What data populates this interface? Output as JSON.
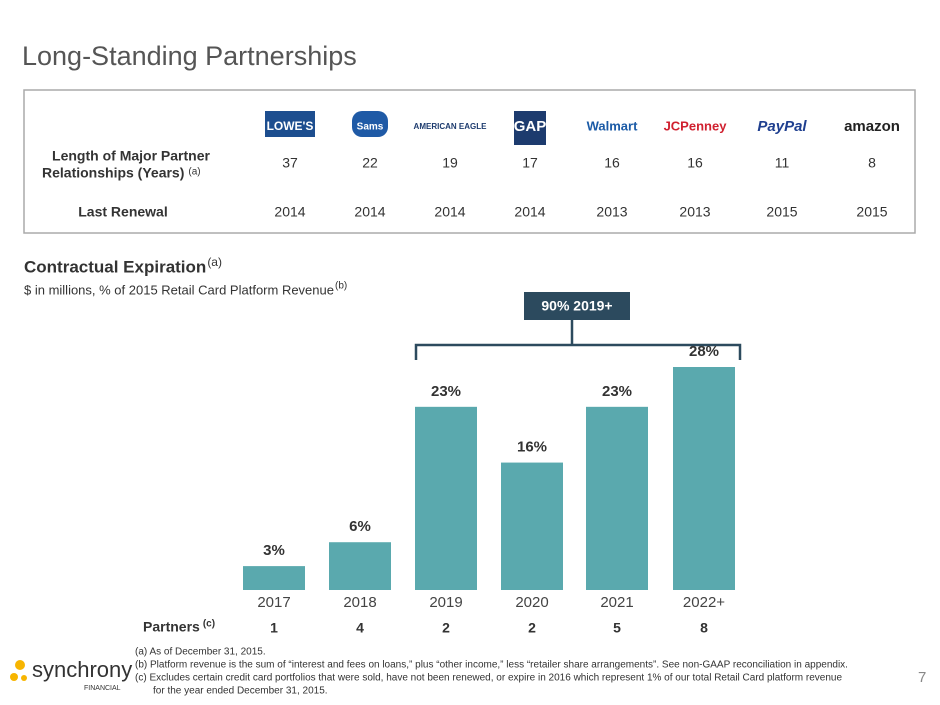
{
  "title": "Long-Standing Partnerships",
  "partners_table": {
    "row_labels": [
      "Length of Major Partner",
      "Relationships (Years)",
      "Last Renewal"
    ],
    "row_label_note": "(a)",
    "partners": [
      "LOWE'S",
      "Sams",
      "AMERICAN EAGLE",
      "GAP",
      "Walmart",
      "JCPenney",
      "PayPal",
      "amazon"
    ],
    "years": [
      37,
      22,
      19,
      17,
      16,
      16,
      11,
      8
    ],
    "last_renewal": [
      2014,
      2014,
      2014,
      2014,
      2013,
      2013,
      2015,
      2015
    ]
  },
  "chart_data": {
    "type": "bar",
    "title": "Contractual Expiration",
    "title_note": "(a)",
    "subtitle": "$ in millions, % of 2015 Retail Card Platform Revenue",
    "subtitle_note": "(b)",
    "categories": [
      "2017",
      "2018",
      "2019",
      "2020",
      "2021",
      "2022+"
    ],
    "values": [
      3,
      6,
      23,
      16,
      23,
      28
    ],
    "value_labels": [
      "3%",
      "6%",
      "23%",
      "16%",
      "23%",
      "28%"
    ],
    "color": "#5aa9ae",
    "annotation": "90% 2019+",
    "partners_label": "Partners",
    "partners_note": "(c)",
    "partners": [
      1,
      4,
      2,
      2,
      5,
      8
    ]
  },
  "footnotes": [
    "(a) As of December 31, 2015.",
    "(b) Platform revenue is the sum of “interest and fees on loans,” plus “other income,” less “retailer share arrangements”.  See non-GAAP reconciliation in appendix.",
    "(c) Excludes certain credit card portfolios that were sold, have not been renewed, or expire in 2016 which represent 1% of our total Retail Card platform revenue",
    "for the year ended December 31, 2015."
  ],
  "logo": {
    "name": "synchrony",
    "sub": "FINANCIAL"
  },
  "page_number": 7
}
